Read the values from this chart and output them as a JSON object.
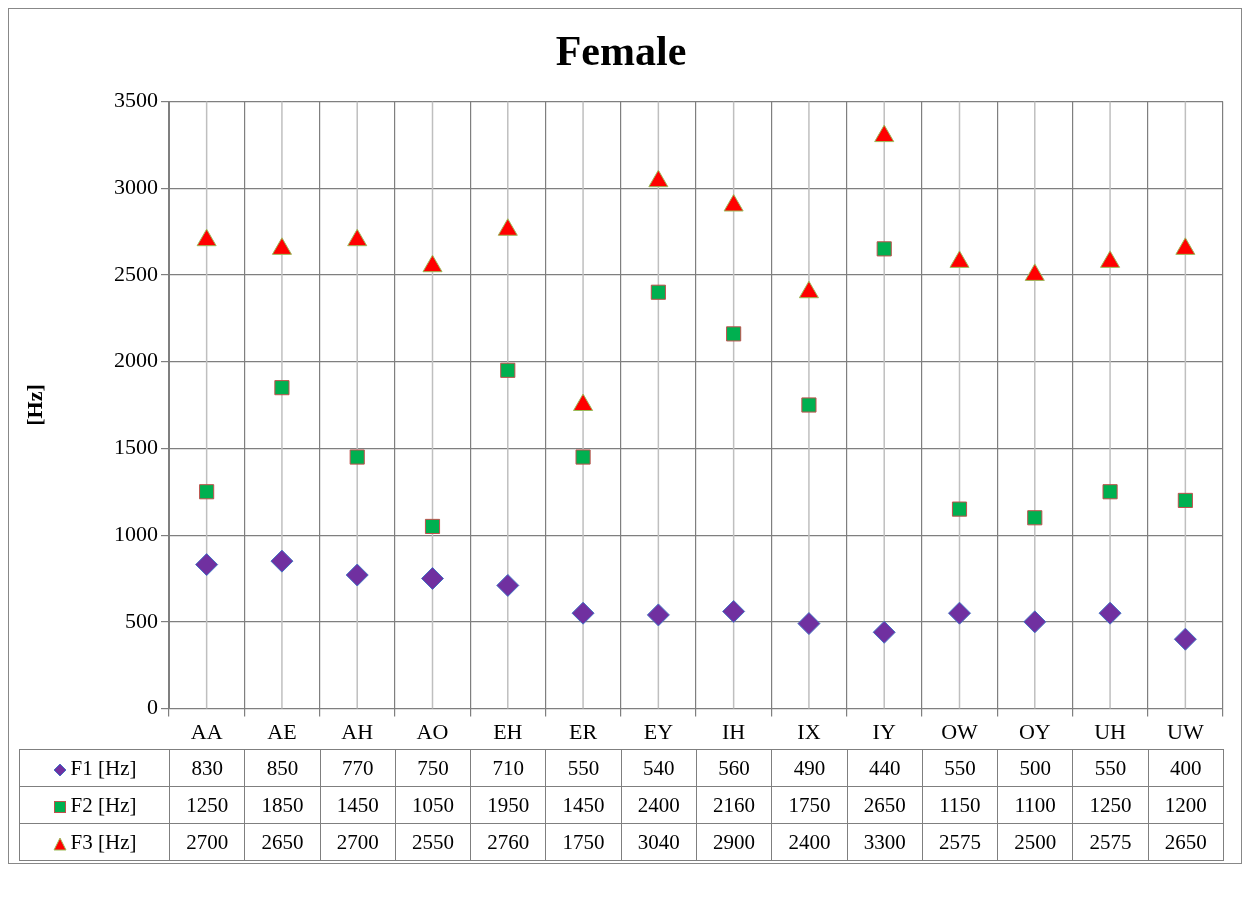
{
  "chart_data": {
    "type": "scatter",
    "title": "Female",
    "ylabel": "[Hz]",
    "categories": [
      "AA",
      "AE",
      "AH",
      "AO",
      "EH",
      "ER",
      "EY",
      "IH",
      "IX",
      "IY",
      "OW",
      "OY",
      "UH",
      "UW"
    ],
    "series": [
      {
        "name": "F1 [Hz]",
        "color": "#7030a0",
        "marker": "diamond",
        "values": [
          830,
          850,
          770,
          750,
          710,
          550,
          540,
          560,
          490,
          440,
          550,
          500,
          550,
          400
        ]
      },
      {
        "name": "F2 [Hz]",
        "color": "#00b050",
        "marker": "square",
        "values": [
          1250,
          1850,
          1450,
          1050,
          1950,
          1450,
          2400,
          2160,
          1750,
          2650,
          1150,
          1100,
          1250,
          1200
        ]
      },
      {
        "name": "F3 [Hz]",
        "color": "#ff0000",
        "marker": "triangle",
        "values": [
          2700,
          2650,
          2700,
          2550,
          2760,
          1750,
          3040,
          2900,
          2400,
          3300,
          2575,
          2500,
          2575,
          2650
        ]
      }
    ],
    "ylim": [
      0,
      3500
    ],
    "yticks": [
      0,
      500,
      1000,
      1500,
      2000,
      2500,
      3000,
      3500
    ],
    "grid": true,
    "legend": "bottom",
    "data_labels": true
  }
}
